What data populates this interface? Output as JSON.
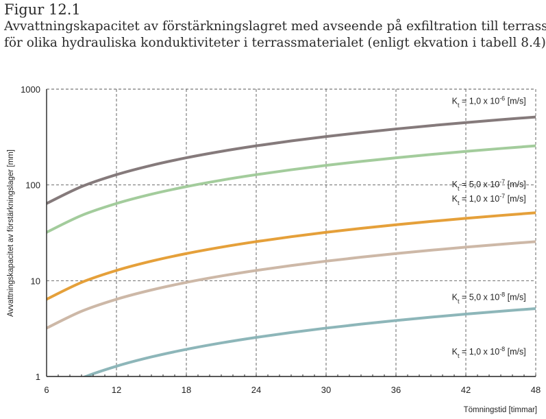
{
  "figure": {
    "label": "Figur 12.1",
    "caption_line1": "Avvattningskapacitet av förstärkningslagret med avseende på exfiltration till terrass",
    "caption_line2": "för olika hydrauliska konduktiviteter i terrassmaterialet (enligt ekvation i tabell 8.4)."
  },
  "chart_data": {
    "type": "line",
    "title": "",
    "xlabel": "Tömningstid [timmar]",
    "ylabel": "Avvattningskapacitet av förstärkningslager [mm]",
    "xlim": [
      6,
      48
    ],
    "ylim": [
      1,
      1000
    ],
    "yscale": "log",
    "grid": "dashed",
    "x_ticks": [
      6,
      12,
      18,
      24,
      30,
      36,
      42,
      48
    ],
    "y_ticks": [
      1,
      10,
      100,
      1000
    ],
    "x": [
      6,
      9,
      12,
      15,
      18,
      21,
      24,
      27,
      30,
      33,
      36,
      39,
      42,
      45,
      48
    ],
    "series": [
      {
        "name": "Kt = 1,0 x 10-6 [m/s]",
        "label": {
          "prefix": "K",
          "sub": "t",
          "mid": " = 1,0 x 10",
          "sup": "-6",
          "suffix": " [m/s]"
        },
        "color": "#857a7b",
        "values": [
          64,
          96,
          128,
          160,
          192,
          224,
          256,
          288,
          320,
          352,
          384,
          416,
          448,
          480,
          512
        ]
      },
      {
        "name": "Kt = 5,0 x 10-7 [m/s]",
        "label": {
          "prefix": "K",
          "sub": "t",
          "mid": " = 5,0 x 10",
          "sup": "-7",
          "suffix": " [m/s]"
        },
        "color": "#a3cc9c",
        "values": [
          32,
          48,
          64,
          80,
          96,
          112,
          128,
          144,
          160,
          176,
          192,
          208,
          224,
          240,
          256
        ]
      },
      {
        "name": "Kt = 1,0 x 10-7 [m/s]",
        "label": {
          "prefix": "K",
          "sub": "t",
          "mid": " = 1,0 x 10",
          "sup": "-7",
          "suffix": " [m/s]"
        },
        "color": "#e5a03a",
        "values": [
          6.4,
          9.6,
          12.8,
          16.0,
          19.2,
          22.4,
          25.6,
          28.8,
          32.0,
          35.2,
          38.4,
          41.6,
          44.8,
          48.0,
          51.2
        ]
      },
      {
        "name": "Kt = 5,0 x 10-8 [m/s]",
        "label": {
          "prefix": "K",
          "sub": "t",
          "mid": " = 5,0 x 10",
          "sup": "-8",
          "suffix": " [m/s]"
        },
        "color": "#cdb8a7",
        "values": [
          3.2,
          4.8,
          6.4,
          8.0,
          9.6,
          11.2,
          12.8,
          14.4,
          16.0,
          17.6,
          19.2,
          20.8,
          22.4,
          24.0,
          25.6
        ]
      },
      {
        "name": "Kt = 1,0 x 10-8 [m/s]",
        "label": {
          "prefix": "K",
          "sub": "t",
          "mid": " = 1,0 x 10",
          "sup": "-8",
          "suffix": " [m/s]"
        },
        "color": "#8db6b9",
        "values": [
          0.64,
          0.96,
          1.28,
          1.6,
          1.92,
          2.24,
          2.56,
          2.88,
          3.2,
          3.52,
          3.84,
          4.16,
          4.48,
          4.8,
          5.12
        ]
      }
    ]
  }
}
